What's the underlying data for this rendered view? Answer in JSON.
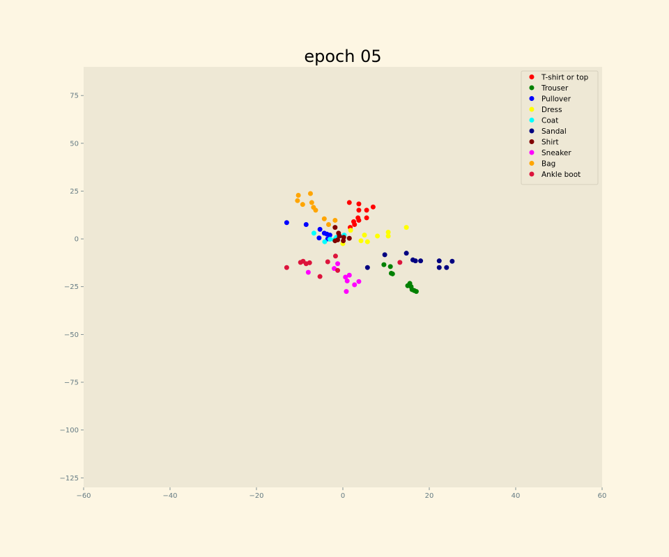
{
  "chart_data": {
    "type": "scatter",
    "title": "epoch 05",
    "xlabel": "",
    "ylabel": "",
    "xlim": [
      -60,
      60
    ],
    "ylim": [
      -130,
      90
    ],
    "xticks": [
      -60,
      -40,
      -20,
      0,
      20,
      40,
      60
    ],
    "yticks": [
      75,
      50,
      25,
      0,
      -25,
      -50,
      -75,
      -100,
      -125
    ],
    "tick_labels_x": [
      "−60",
      "−40",
      "−20",
      "0",
      "20",
      "40",
      "60"
    ],
    "tick_labels_y": [
      "75",
      "50",
      "25",
      "0",
      "−25",
      "−50",
      "−75",
      "−100",
      "−125"
    ],
    "grid": false,
    "legend_position": "top-right",
    "colors": {
      "figure_background": "#fdf6e3",
      "axes_background": "#eee8d5",
      "tick_color": "#657b83"
    },
    "series": [
      {
        "name": "T-shirt or top",
        "color": "#ff0000",
        "points": [
          [
            1.5,
            19
          ],
          [
            3.7,
            18.3
          ],
          [
            7,
            16.7
          ],
          [
            3.7,
            15
          ],
          [
            5.5,
            15
          ],
          [
            5.5,
            11
          ],
          [
            3.5,
            11
          ],
          [
            3.7,
            9.7
          ],
          [
            2.5,
            9
          ],
          [
            2.7,
            7.5
          ],
          [
            1.7,
            6
          ]
        ]
      },
      {
        "name": "Trouser",
        "color": "#008000",
        "points": [
          [
            9.5,
            -13.5
          ],
          [
            11,
            -14.5
          ],
          [
            11.2,
            -18
          ],
          [
            11.5,
            -18.3
          ],
          [
            15.5,
            -23.3
          ],
          [
            15,
            -24.5
          ],
          [
            15.8,
            -25
          ],
          [
            16,
            -26.5
          ],
          [
            16.5,
            -27
          ],
          [
            17,
            -27.5
          ]
        ]
      },
      {
        "name": "Pullover",
        "color": "#0000ff",
        "points": [
          [
            -13,
            8.5
          ],
          [
            -8.5,
            7.5
          ],
          [
            -5.3,
            5
          ],
          [
            -4.3,
            3
          ],
          [
            -3.7,
            2.5
          ],
          [
            -3,
            2
          ],
          [
            -5.5,
            0.5
          ],
          [
            -3.5,
            0
          ]
        ]
      },
      {
        "name": "Dress",
        "color": "#ffff00",
        "points": [
          [
            14.7,
            6
          ],
          [
            10.5,
            3.5
          ],
          [
            10.5,
            1.5
          ],
          [
            8,
            1.5
          ],
          [
            5,
            2
          ],
          [
            1.8,
            4.5
          ],
          [
            4.2,
            -1
          ],
          [
            5.7,
            -1.5
          ],
          [
            0,
            -2.5
          ]
        ]
      },
      {
        "name": "Coat",
        "color": "#00ffff",
        "points": [
          [
            -6.7,
            3
          ],
          [
            0.3,
            2
          ],
          [
            -4.2,
            -1.5
          ],
          [
            -3,
            -0.2
          ],
          [
            -2,
            -0.5
          ],
          [
            -1.5,
            0.8
          ]
        ]
      },
      {
        "name": "Sandal",
        "color": "#000080",
        "points": [
          [
            14.7,
            -7.5
          ],
          [
            9.7,
            -8.3
          ],
          [
            16.2,
            -11
          ],
          [
            16.8,
            -11.5
          ],
          [
            18,
            -11.5
          ],
          [
            22.3,
            -11.5
          ],
          [
            25.3,
            -11.7
          ],
          [
            22.3,
            -15
          ],
          [
            24,
            -15
          ],
          [
            5.7,
            -15
          ]
        ]
      },
      {
        "name": "Shirt",
        "color": "#800000",
        "points": [
          [
            -1.8,
            6
          ],
          [
            -1,
            3
          ],
          [
            -0.8,
            1.5
          ],
          [
            0.2,
            0.8
          ],
          [
            1.5,
            0.3
          ],
          [
            -1.2,
            -0.5
          ],
          [
            -1.8,
            -1
          ],
          [
            0.1,
            -1
          ]
        ]
      },
      {
        "name": "Sneaker",
        "color": "#ff00ff",
        "points": [
          [
            -1.2,
            -13
          ],
          [
            -2,
            -15.5
          ],
          [
            -8,
            -17.5
          ],
          [
            1.5,
            -19
          ],
          [
            0.6,
            -20
          ],
          [
            1,
            -22
          ],
          [
            3.7,
            -22.3
          ],
          [
            2.7,
            -24
          ],
          [
            0.8,
            -27.5
          ]
        ]
      },
      {
        "name": "Bag",
        "color": "#ffa500",
        "points": [
          [
            -7.5,
            23.7
          ],
          [
            -10.3,
            22.8
          ],
          [
            -10.5,
            20
          ],
          [
            -7.2,
            19
          ],
          [
            -9.3,
            18
          ],
          [
            -6.8,
            16.5
          ],
          [
            -6.3,
            15
          ],
          [
            -4.3,
            10.5
          ],
          [
            -1.8,
            9.7
          ],
          [
            -3.3,
            7.5
          ]
        ]
      },
      {
        "name": "Ankle boot",
        "color": "#dc143c",
        "points": [
          [
            -1.7,
            -9
          ],
          [
            -9.2,
            -11.7
          ],
          [
            -9.8,
            -12.3
          ],
          [
            -7.7,
            -12.5
          ],
          [
            -3.5,
            -12
          ],
          [
            -8.5,
            -13
          ],
          [
            -13,
            -15
          ],
          [
            -1.2,
            -16.5
          ],
          [
            -5.3,
            -19.7
          ],
          [
            13.2,
            -12.3
          ]
        ]
      }
    ]
  }
}
